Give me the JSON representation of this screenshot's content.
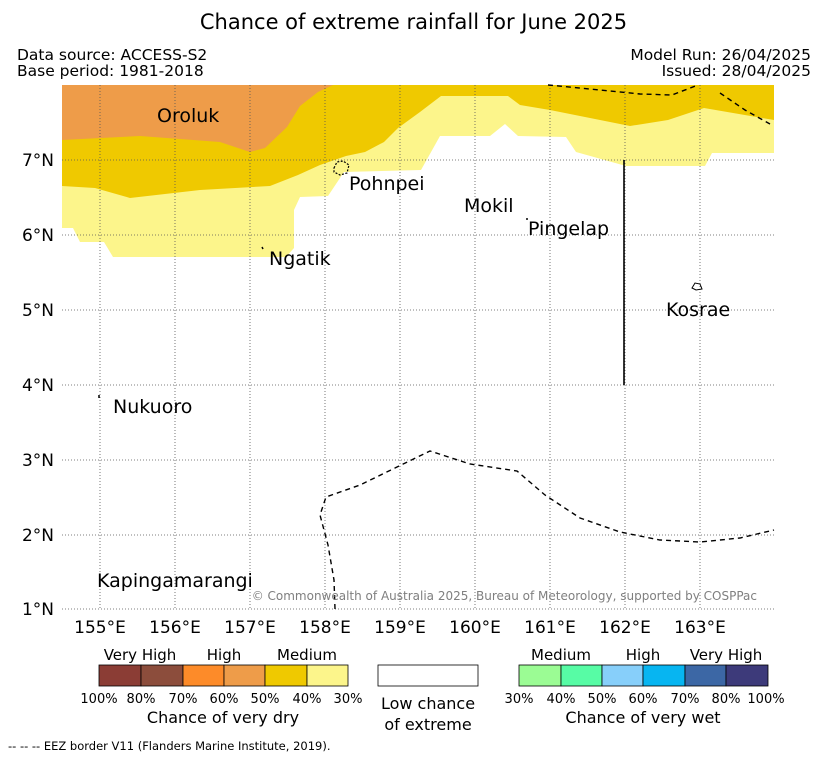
{
  "title": "Chance of extreme rainfall for June 2025",
  "meta": {
    "data_source": "Data source: ACCESS-S2",
    "base_period": "Base period: 1981-2018",
    "model_run": "Model Run: 26/04/2025",
    "issued": "Issued: 28/04/2025"
  },
  "map": {
    "lon_ticks": [
      "155°E",
      "156°E",
      "157°E",
      "158°E",
      "159°E",
      "160°E",
      "161°E",
      "162°E",
      "163°E"
    ],
    "lat_ticks": [
      "7°N",
      "6°N",
      "5°N",
      "4°N",
      "3°N",
      "2°N",
      "1°N"
    ],
    "places": {
      "oroluk": "Oroluk",
      "pohnpei": "Pohnpei",
      "mokil": "Mokil",
      "pingelap": "Pingelap",
      "ngatik": "Ngatik",
      "kosrae": "Kosrae",
      "nukuoro": "Nukuoro",
      "kapingamarangi": "Kapingamarangi"
    },
    "copyright": "© Commonwealth of Australia 2025, Bureau of Meteorology, supported by COSPPac",
    "colors": {
      "dry_high": "#ee9c49",
      "dry_medium": "#efc900",
      "dry_low": "#fcf58b",
      "eez_border": "#000000"
    }
  },
  "legend": {
    "dry": {
      "categories": [
        "Very High",
        "High",
        "Medium"
      ],
      "percents": [
        "100%",
        "80%",
        "70%",
        "60%",
        "50%",
        "40%",
        "30%"
      ],
      "colors": [
        "#8b3d35",
        "#8c4d3c",
        "#fd8b29",
        "#ee9c49",
        "#efc900",
        "#fcf58b"
      ],
      "title": "Chance of very dry"
    },
    "neutral": {
      "line1": "Low chance",
      "line2": "of extreme",
      "color": "#ffffff"
    },
    "wet": {
      "categories": [
        "Medium",
        "High",
        "Very High"
      ],
      "percents": [
        "30%",
        "40%",
        "50%",
        "60%",
        "70%",
        "80%",
        "100%"
      ],
      "colors": [
        "#9bfc94",
        "#57fca5",
        "#87cffa",
        "#07b5f1",
        "#3c67a5",
        "#3d3a7a"
      ],
      "title": "Chance of very wet"
    }
  },
  "footnote": "-- -- -- EEZ border V11 (Flanders Marine Institute, 2019)."
}
